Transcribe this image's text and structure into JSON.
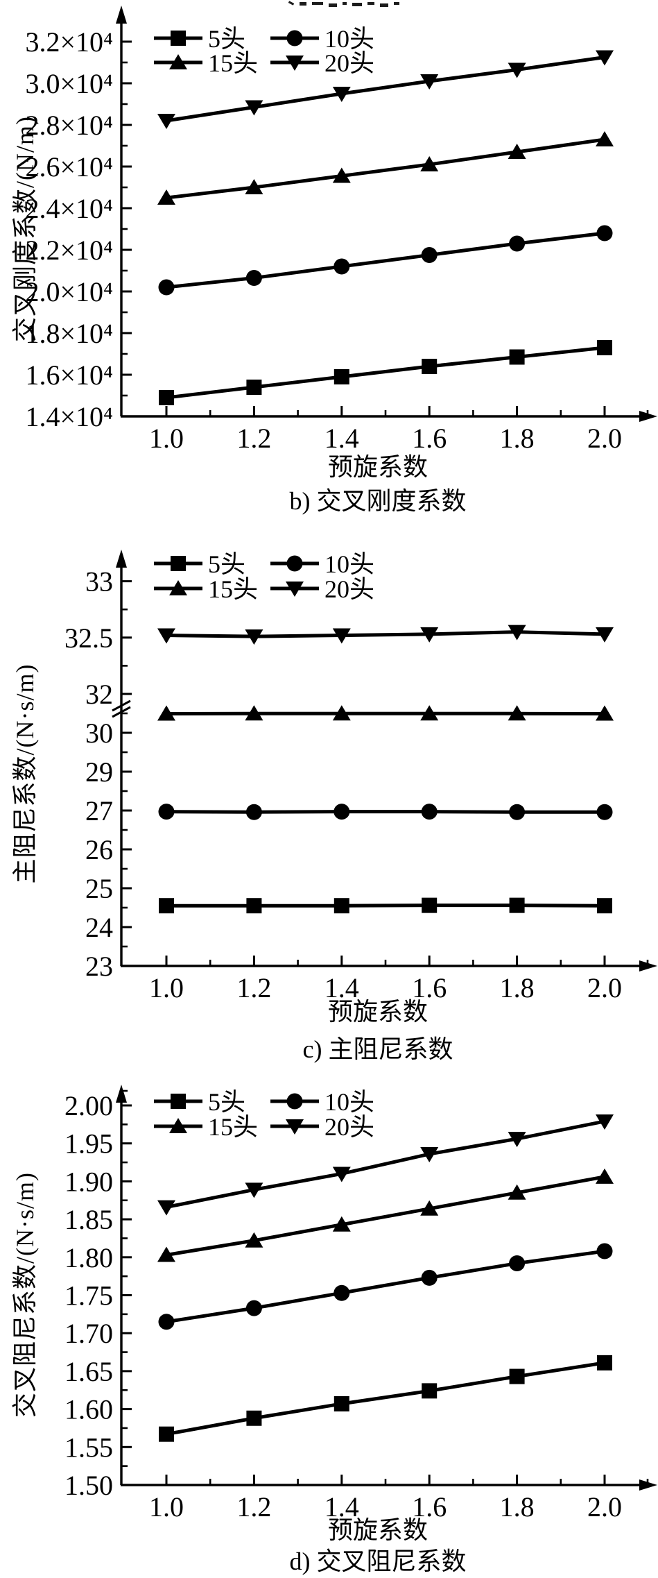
{
  "page": {
    "background": "#ffffff",
    "ink": "#000000"
  },
  "chart_data": [
    {
      "id": "b",
      "type": "line",
      "caption": "b) 交叉刚度系数",
      "xlabel": "预旋系数",
      "ylabel": "交叉刚度系数/(N/m)",
      "legend_position": "top-left",
      "grid": false,
      "x": [
        1.0,
        1.2,
        1.4,
        1.6,
        1.8,
        2.0
      ],
      "x_tick_labels": [
        "1.0",
        "1.2",
        "1.4",
        "1.6",
        "1.8",
        "2.0"
      ],
      "xlim": [
        1.0,
        2.0
      ],
      "ylim": [
        14000,
        32000
      ],
      "y_ticks": [
        {
          "value": 14000,
          "label": "1.4×10⁴"
        },
        {
          "value": 16000,
          "label": "1.6×10⁴"
        },
        {
          "value": 18000,
          "label": "1.8×10⁴"
        },
        {
          "value": 20000,
          "label": "2.0×10⁴"
        },
        {
          "value": 22000,
          "label": "2.2×10⁴"
        },
        {
          "value": 24000,
          "label": "2.4×10⁴"
        },
        {
          "value": 26000,
          "label": "2.6×10⁴"
        },
        {
          "value": 28000,
          "label": "2.8×10⁴"
        },
        {
          "value": 30000,
          "label": "3.0×10⁴"
        },
        {
          "value": 32000,
          "label": "3.2×10⁴"
        }
      ],
      "series": [
        {
          "name": "5头",
          "marker": "square",
          "color": "#000000",
          "values": [
            14900,
            15400,
            15900,
            16400,
            16850,
            17300
          ]
        },
        {
          "name": "10头",
          "marker": "circle",
          "color": "#000000",
          "values": [
            20200,
            20650,
            21200,
            21750,
            22300,
            22800
          ]
        },
        {
          "name": "15头",
          "marker": "triangle-up",
          "color": "#000000",
          "values": [
            24500,
            25000,
            25550,
            26100,
            26700,
            27300
          ]
        },
        {
          "name": "20头",
          "marker": "triangle-down",
          "color": "#000000",
          "values": [
            28200,
            28850,
            29500,
            30100,
            30650,
            31250
          ]
        }
      ]
    },
    {
      "id": "c",
      "type": "line",
      "caption": "c) 主阻尼系数",
      "xlabel": "预旋系数",
      "ylabel": "主阻尼系数/(N·s/m)",
      "legend_position": "top-left",
      "grid": false,
      "y_scale": "broken",
      "axis_break_below_value": 32,
      "x": [
        1.0,
        1.2,
        1.4,
        1.6,
        1.8,
        2.0
      ],
      "x_tick_labels": [
        "1.0",
        "1.2",
        "1.4",
        "1.6",
        "1.8",
        "2.0"
      ],
      "xlim": [
        1.0,
        2.0
      ],
      "ylim": [
        23,
        33
      ],
      "y_ticks": [
        {
          "value": 23,
          "label": "23"
        },
        {
          "value": 24,
          "label": "24"
        },
        {
          "value": 25,
          "label": "25"
        },
        {
          "value": 26,
          "label": "26"
        },
        {
          "value": 27,
          "label": "27"
        },
        {
          "value": 29,
          "label": "29"
        },
        {
          "value": 30,
          "label": "30"
        },
        {
          "value": 32,
          "label": "32"
        },
        {
          "value": 32.5,
          "label": "32.5"
        },
        {
          "value": 33,
          "label": "33"
        }
      ],
      "series": [
        {
          "name": "5头",
          "marker": "square",
          "color": "#000000",
          "values": [
            24.55,
            24.55,
            24.55,
            24.56,
            24.56,
            24.55
          ]
        },
        {
          "name": "10头",
          "marker": "circle",
          "color": "#000000",
          "values": [
            26.97,
            26.96,
            26.97,
            26.97,
            26.96,
            26.96
          ]
        },
        {
          "name": "15头",
          "marker": "triangle-up",
          "color": "#000000",
          "values": [
            30.98,
            30.99,
            30.99,
            30.99,
            30.99,
            30.98
          ]
        },
        {
          "name": "20头",
          "marker": "triangle-down",
          "color": "#000000",
          "values": [
            32.52,
            32.51,
            32.52,
            32.53,
            32.55,
            32.53
          ]
        }
      ]
    },
    {
      "id": "d",
      "type": "line",
      "caption": "d) 交叉阻尼系数",
      "xlabel": "预旋系数",
      "ylabel": "交叉阻尼系数/(N·s/m)",
      "legend_position": "top-left",
      "grid": false,
      "x": [
        1.0,
        1.2,
        1.4,
        1.6,
        1.8,
        2.0
      ],
      "x_tick_labels": [
        "1.0",
        "1.2",
        "1.4",
        "1.6",
        "1.8",
        "2.0"
      ],
      "xlim": [
        1.0,
        2.0
      ],
      "ylim": [
        1.5,
        2.0
      ],
      "y_ticks": [
        {
          "value": 1.5,
          "label": "1.50"
        },
        {
          "value": 1.55,
          "label": "1.55"
        },
        {
          "value": 1.6,
          "label": "1.60"
        },
        {
          "value": 1.65,
          "label": "1.65"
        },
        {
          "value": 1.7,
          "label": "1.70"
        },
        {
          "value": 1.75,
          "label": "1.75"
        },
        {
          "value": 1.8,
          "label": "1.80"
        },
        {
          "value": 1.85,
          "label": "1.85"
        },
        {
          "value": 1.9,
          "label": "1.90"
        },
        {
          "value": 1.95,
          "label": "1.95"
        },
        {
          "value": 2.0,
          "label": "2.00"
        }
      ],
      "series": [
        {
          "name": "5头",
          "marker": "square",
          "color": "#000000",
          "values": [
            1.567,
            1.588,
            1.607,
            1.624,
            1.643,
            1.661
          ]
        },
        {
          "name": "10头",
          "marker": "circle",
          "color": "#000000",
          "values": [
            1.715,
            1.733,
            1.753,
            1.773,
            1.792,
            1.808
          ]
        },
        {
          "name": "15头",
          "marker": "triangle-up",
          "color": "#000000",
          "values": [
            1.803,
            1.822,
            1.843,
            1.864,
            1.885,
            1.906
          ]
        },
        {
          "name": "20头",
          "marker": "triangle-down",
          "color": "#000000",
          "values": [
            1.866,
            1.889,
            1.91,
            1.936,
            1.956,
            1.979
          ]
        }
      ]
    }
  ]
}
